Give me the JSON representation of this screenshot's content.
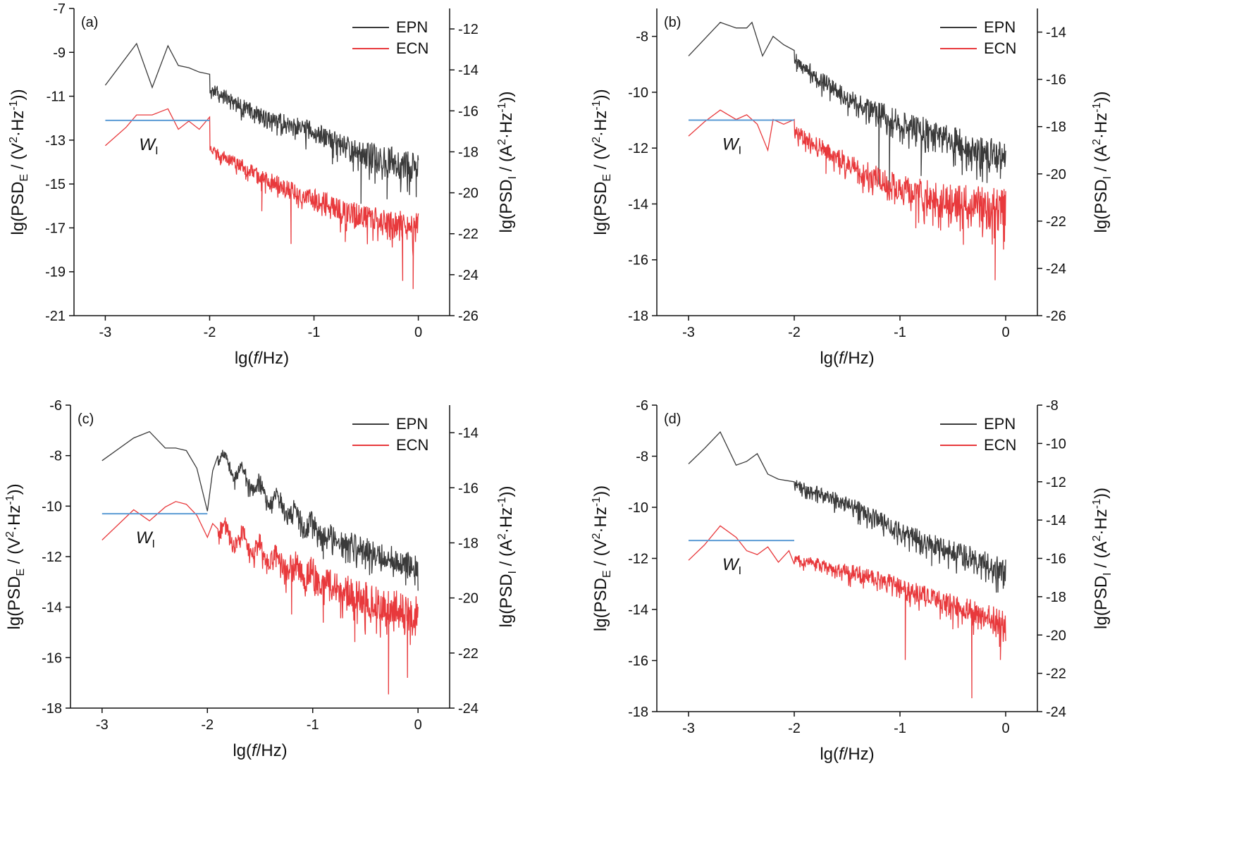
{
  "chart_data": [
    {
      "type": "line",
      "panel_label": "(a)",
      "xlabel": {
        "pre": "lg(",
        "italic": "f",
        "post": "/Hz)"
      },
      "ylabel_left": {
        "a": "lg(PSD",
        "sub": "E",
        "b": " / (V",
        "sup": "2",
        "c": "·Hz",
        "sup2": "-1",
        "d": "))"
      },
      "ylabel_right": {
        "a": "lg(PSD",
        "sub": "I",
        "b": " / (A",
        "sup": "2",
        "c": "·Hz",
        "sup2": "-1",
        "d": "))"
      },
      "xlim": [
        -3.3,
        0.3
      ],
      "ylim_left": [
        -21,
        -7
      ],
      "ylim_right": [
        -26,
        -11
      ],
      "xticks": [
        "-3",
        "-2",
        "-1",
        "0"
      ],
      "yticks_left": [
        "-7",
        "-9",
        "-11",
        "-13",
        "-15",
        "-17",
        "-19",
        "-21"
      ],
      "yticks_right": [
        "-12",
        "-14",
        "-16",
        "-18",
        "-20",
        "-22",
        "-24",
        "-26"
      ],
      "legend_position": "top-right",
      "series": [
        {
          "name": "EPN",
          "axis": "left",
          "color": "#3a3a3a",
          "shape": [
            [
              -3,
              -10.5
            ],
            [
              -2.7,
              -8.6
            ],
            [
              -2.55,
              -10.6
            ],
            [
              -2.4,
              -8.7
            ],
            [
              -2.3,
              -9.6
            ],
            [
              -2.2,
              -9.7
            ],
            [
              -2.1,
              -9.9
            ],
            [
              -2.0,
              -10.0
            ]
          ],
          "trend": [
            [
              -2.0,
              -10.6
            ],
            [
              -1.5,
              -11.9
            ],
            [
              -1.0,
              -12.6
            ],
            [
              -0.5,
              -13.6
            ],
            [
              0.0,
              -14.2
            ]
          ],
          "noise": [
            0.3,
            0.8
          ],
          "spikes": [
            [
              -0.55,
              -15.9
            ],
            [
              -0.3,
              -15.7
            ],
            [
              -0.02,
              -15.6
            ]
          ],
          "seed": 11
        },
        {
          "name": "ECN",
          "axis": "right",
          "color": "#e8393c",
          "shape": [
            [
              -3,
              -17.7
            ],
            [
              -2.8,
              -16.8
            ],
            [
              -2.7,
              -16.2
            ],
            [
              -2.55,
              -16.2
            ],
            [
              -2.45,
              -16.0
            ],
            [
              -2.4,
              -15.9
            ],
            [
              -2.3,
              -16.9
            ],
            [
              -2.2,
              -16.5
            ],
            [
              -2.1,
              -16.9
            ],
            [
              -2.0,
              -16.3
            ]
          ],
          "trend": [
            [
              -2.0,
              -17.8
            ],
            [
              -1.5,
              -19.2
            ],
            [
              -1.0,
              -20.3
            ],
            [
              -0.5,
              -21.2
            ],
            [
              0.0,
              -21.6
            ]
          ],
          "noise": [
            0.3,
            0.9
          ],
          "spikes": [
            [
              -1.5,
              -20.9
            ],
            [
              -1.22,
              -22.5
            ],
            [
              -0.7,
              -22.4
            ],
            [
              -0.15,
              -24.3
            ],
            [
              -0.05,
              -24.7
            ]
          ],
          "seed": 23
        }
      ],
      "wi_line": {
        "x": [
          -3,
          -2
        ],
        "y_left": -12.1,
        "color": "#5b9bd5",
        "label_main": "W",
        "label_sub": "I"
      }
    },
    {
      "type": "line",
      "panel_label": "(b)",
      "xlabel": {
        "pre": "lg(",
        "italic": "f",
        "post": "/Hz)"
      },
      "ylabel_left": {
        "a": "lg(PSD",
        "sub": "E",
        "b": " / (V",
        "sup": "2",
        "c": "·Hz",
        "sup2": "-1",
        "d": "))"
      },
      "ylabel_right": {
        "a": "lg(PSD",
        "sub": "I",
        "b": " / (A",
        "sup": "2",
        "c": "·Hz",
        "sup2": "-1",
        "d": "))"
      },
      "xlim": [
        -3.3,
        0.3
      ],
      "ylim_left": [
        -18,
        -7
      ],
      "ylim_right": [
        -26,
        -13
      ],
      "xticks": [
        "-3",
        "-2",
        "-1",
        "0"
      ],
      "yticks_left": [
        "-8",
        "-10",
        "-12",
        "-14",
        "-16",
        "-18"
      ],
      "yticks_right": [
        "-14",
        "-16",
        "-18",
        "-20",
        "-22",
        "-24",
        "-26"
      ],
      "legend_position": "top-right",
      "series": [
        {
          "name": "EPN",
          "axis": "left",
          "color": "#3a3a3a",
          "shape": [
            [
              -3,
              -8.7
            ],
            [
              -2.7,
              -7.5
            ],
            [
              -2.55,
              -7.7
            ],
            [
              -2.45,
              -7.7
            ],
            [
              -2.4,
              -7.5
            ],
            [
              -2.3,
              -8.7
            ],
            [
              -2.2,
              -8.0
            ],
            [
              -2.1,
              -8.3
            ],
            [
              -2.0,
              -8.5
            ]
          ],
          "trend": [
            [
              -2.0,
              -8.8
            ],
            [
              -1.5,
              -10.2
            ],
            [
              -1.0,
              -11.0
            ],
            [
              -0.5,
              -11.7
            ],
            [
              0.0,
              -12.3
            ]
          ],
          "noise": [
            0.3,
            0.7
          ],
          "spikes": [
            [
              -1.2,
              -13.3
            ],
            [
              -1.1,
              -13.5
            ],
            [
              -0.8,
              -13.0
            ],
            [
              -0.05,
              -13.1
            ]
          ],
          "seed": 31
        },
        {
          "name": "ECN",
          "axis": "right",
          "color": "#e8393c",
          "shape": [
            [
              -3,
              -18.4
            ],
            [
              -2.85,
              -17.8
            ],
            [
              -2.7,
              -17.3
            ],
            [
              -2.55,
              -17.7
            ],
            [
              -2.45,
              -17.5
            ],
            [
              -2.35,
              -17.9
            ],
            [
              -2.25,
              -19.0
            ],
            [
              -2.2,
              -17.7
            ],
            [
              -2.1,
              -17.9
            ],
            [
              -2.0,
              -17.7
            ]
          ],
          "trend": [
            [
              -2.0,
              -18.2
            ],
            [
              -1.5,
              -19.5
            ],
            [
              -1.0,
              -20.6
            ],
            [
              -0.5,
              -21.1
            ],
            [
              0.0,
              -21.4
            ]
          ],
          "noise": [
            0.35,
            1.0
          ],
          "spikes": [
            [
              -1.7,
              -20.0
            ],
            [
              -1.4,
              -20.4
            ],
            [
              -0.85,
              -22.3
            ],
            [
              -0.4,
              -23.0
            ],
            [
              -0.1,
              -24.5
            ],
            [
              -0.02,
              -23.2
            ]
          ],
          "seed": 47
        }
      ],
      "wi_line": {
        "x": [
          -3,
          -2
        ],
        "y_left": -11.0,
        "color": "#5b9bd5",
        "label_main": "W",
        "label_sub": "I"
      }
    },
    {
      "type": "line",
      "panel_label": "(c)",
      "xlabel": {
        "pre": "lg(",
        "italic": "f",
        "post": "/Hz)"
      },
      "ylabel_left": {
        "a": "lg(PSD",
        "sub": "E",
        "b": " / (V",
        "sup": "2",
        "c": "·Hz",
        "sup2": "-1",
        "d": "))"
      },
      "ylabel_right": {
        "a": "lg(PSD",
        "sub": "I",
        "b": " / (A",
        "sup": "2",
        "c": "·Hz",
        "sup2": "-1",
        "d": "))"
      },
      "xlim": [
        -3.3,
        0.3
      ],
      "ylim_left": [
        -18,
        -6
      ],
      "ylim_right": [
        -24,
        -13
      ],
      "xticks": [
        "-3",
        "-2",
        "-1",
        "0"
      ],
      "yticks_left": [
        "-6",
        "-8",
        "-10",
        "-12",
        "-14",
        "-16",
        "-18"
      ],
      "yticks_right": [
        "-14",
        "-16",
        "-18",
        "-20",
        "-22",
        "-24"
      ],
      "legend_position": "top-right",
      "series": [
        {
          "name": "EPN",
          "axis": "left",
          "color": "#3a3a3a",
          "shape": [
            [
              -3,
              -8.2
            ],
            [
              -2.7,
              -7.3
            ],
            [
              -2.55,
              -7.05
            ],
            [
              -2.4,
              -7.7
            ],
            [
              -2.3,
              -7.7
            ],
            [
              -2.2,
              -7.8
            ],
            [
              -2.1,
              -8.5
            ],
            [
              -2.0,
              -10.2
            ],
            [
              -1.95,
              -8.6
            ],
            [
              -1.9,
              -8.0
            ]
          ],
          "trend": [
            [
              -1.9,
              -8.0
            ],
            [
              -1.5,
              -9.3
            ],
            [
              -1.0,
              -10.8
            ],
            [
              -0.5,
              -11.7
            ],
            [
              0.0,
              -12.4
            ]
          ],
          "noise": [
            0.25,
            0.7
          ],
          "spikes": [
            [
              -0.9,
              -12.1
            ],
            [
              -0.5,
              -12.5
            ]
          ],
          "seed": 53,
          "oscillate": true
        },
        {
          "name": "ECN",
          "axis": "right",
          "color": "#e8393c",
          "shape": [
            [
              -3,
              -17.9
            ],
            [
              -2.7,
              -16.8
            ],
            [
              -2.55,
              -17.2
            ],
            [
              -2.4,
              -16.7
            ],
            [
              -2.3,
              -16.5
            ],
            [
              -2.2,
              -16.6
            ],
            [
              -2.1,
              -17.0
            ],
            [
              -2.0,
              -17.8
            ],
            [
              -1.95,
              -17.3
            ],
            [
              -1.9,
              -17.5
            ]
          ],
          "trend": [
            [
              -1.9,
              -17.4
            ],
            [
              -1.5,
              -18.3
            ],
            [
              -1.0,
              -19.2
            ],
            [
              -0.5,
              -20.0
            ],
            [
              0.0,
              -20.6
            ]
          ],
          "noise": [
            0.3,
            0.9
          ],
          "spikes": [
            [
              -1.2,
              -20.6
            ],
            [
              -0.9,
              -20.9
            ],
            [
              -0.6,
              -21.6
            ],
            [
              -0.28,
              -23.5
            ],
            [
              -0.1,
              -22.9
            ]
          ],
          "seed": 61,
          "oscillate": true
        }
      ],
      "wi_line": {
        "x": [
          -3,
          -2
        ],
        "y_left": -10.3,
        "color": "#5b9bd5",
        "label_main": "W",
        "label_sub": "I"
      }
    },
    {
      "type": "line",
      "panel_label": "(d)",
      "xlabel": {
        "pre": "lg(",
        "italic": "f",
        "post": "/Hz)"
      },
      "ylabel_left": {
        "a": "lg(PSD",
        "sub": "E",
        "b": " / (V",
        "sup": "2",
        "c": "·Hz",
        "sup2": "-1",
        "d": "))"
      },
      "ylabel_right": {
        "a": "lg(PSD",
        "sub": "I",
        "b": " / (A",
        "sup": "2",
        "c": "·Hz",
        "sup2": "-1",
        "d": "))"
      },
      "xlim": [
        -3.3,
        0.3
      ],
      "ylim_left": [
        -18,
        -6
      ],
      "ylim_right": [
        -24,
        -8
      ],
      "xticks": [
        "-3",
        "-2",
        "-1",
        "0"
      ],
      "yticks_left": [
        "-6",
        "-8",
        "-10",
        "-12",
        "-14",
        "-16",
        "-18"
      ],
      "yticks_right": [
        "-8",
        "-10",
        "-12",
        "-14",
        "-16",
        "-18",
        "-20",
        "-22",
        "-24"
      ],
      "legend_position": "top-right",
      "series": [
        {
          "name": "EPN",
          "axis": "left",
          "color": "#3a3a3a",
          "shape": [
            [
              -3,
              -8.3
            ],
            [
              -2.85,
              -7.7
            ],
            [
              -2.7,
              -7.05
            ],
            [
              -2.55,
              -8.35
            ],
            [
              -2.45,
              -8.2
            ],
            [
              -2.35,
              -7.9
            ],
            [
              -2.25,
              -8.7
            ],
            [
              -2.15,
              -8.9
            ],
            [
              -2.0,
              -9.0
            ]
          ],
          "trend": [
            [
              -2.0,
              -9.1
            ],
            [
              -1.5,
              -9.8
            ],
            [
              -1.0,
              -10.9
            ],
            [
              -0.5,
              -11.7
            ],
            [
              0.0,
              -12.4
            ]
          ],
          "noise": [
            0.25,
            0.6
          ],
          "spikes": [
            [
              -0.7,
              -12.3
            ],
            [
              -0.3,
              -12.6
            ]
          ],
          "seed": 71
        },
        {
          "name": "ECN",
          "axis": "right",
          "color": "#e8393c",
          "shape": [
            [
              -3,
              -16.1
            ],
            [
              -2.85,
              -15.3
            ],
            [
              -2.7,
              -14.3
            ],
            [
              -2.55,
              -14.9
            ],
            [
              -2.45,
              -15.6
            ],
            [
              -2.35,
              -15.8
            ],
            [
              -2.25,
              -15.4
            ],
            [
              -2.15,
              -16.2
            ],
            [
              -2.05,
              -15.6
            ],
            [
              -2.0,
              -16.3
            ]
          ],
          "trend": [
            [
              -2.0,
              -16.0
            ],
            [
              -1.5,
              -16.6
            ],
            [
              -1.0,
              -17.4
            ],
            [
              -0.5,
              -18.4
            ],
            [
              0.0,
              -19.3
            ]
          ],
          "noise": [
            0.3,
            0.8
          ],
          "spikes": [
            [
              -0.95,
              -21.3
            ],
            [
              -0.5,
              -19.7
            ],
            [
              -0.32,
              -23.3
            ],
            [
              -0.05,
              -21.3
            ]
          ],
          "seed": 83
        }
      ],
      "wi_line": {
        "x": [
          -3,
          -2
        ],
        "y_left": -11.3,
        "color": "#5b9bd5",
        "label_main": "W",
        "label_sub": "I"
      }
    }
  ]
}
